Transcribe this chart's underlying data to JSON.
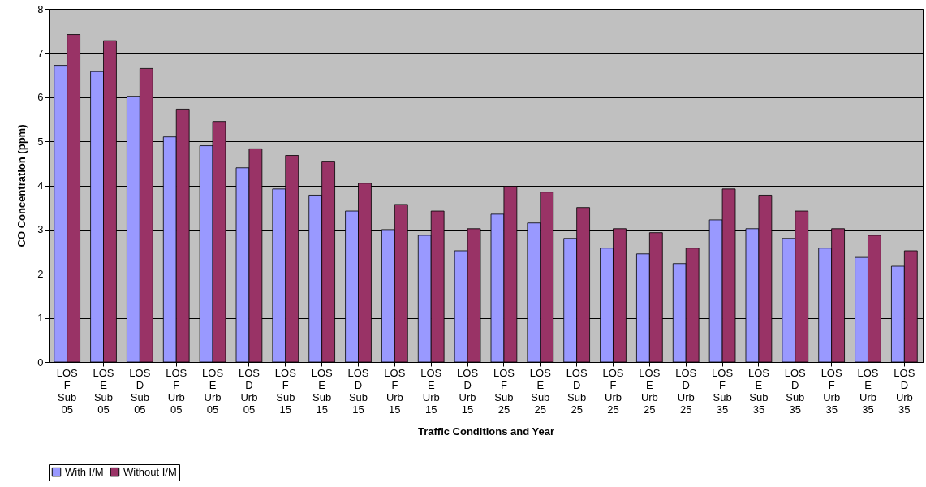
{
  "chart_data": {
    "type": "bar",
    "xlabel": "Traffic Conditions and Year",
    "ylabel": "CO Concentration (ppm)",
    "categories": [
      "LOS F Sub 05",
      "LOS E Sub 05",
      "LOS D Sub 05",
      "LOS F Urb 05",
      "LOS E Urb 05",
      "LOS D Urb 05",
      "LOS F Sub 15",
      "LOS E Sub 15",
      "LOS D Sub 15",
      "LOS F Urb 15",
      "LOS E Urb 15",
      "LOS D Urb 15",
      "LOS F Sub 25",
      "LOS E Sub 25",
      "LOS D Sub 25",
      "LOS F Urb 25",
      "LOS E Urb 25",
      "LOS D Urb 25",
      "LOS F Sub 35",
      "LOS E Sub 35",
      "LOS D Sub 35",
      "LOS F Urb 35",
      "LOS E Urb 35",
      "LOS D Urb 35"
    ],
    "series": [
      {
        "name": "With I/M",
        "color": "#9999ff",
        "values": [
          6.72,
          6.58,
          6.02,
          5.1,
          4.9,
          4.4,
          3.92,
          3.78,
          3.42,
          3.0,
          2.87,
          2.52,
          3.35,
          3.15,
          2.8,
          2.58,
          2.45,
          2.23,
          3.22,
          3.02,
          2.8,
          2.58,
          2.37,
          2.17
        ]
      },
      {
        "name": "Without I/M",
        "color": "#993366",
        "values": [
          7.42,
          7.28,
          6.65,
          5.73,
          5.45,
          4.83,
          4.68,
          4.55,
          4.05,
          3.57,
          3.42,
          3.02,
          3.98,
          3.85,
          3.5,
          3.02,
          2.93,
          2.58,
          3.92,
          3.78,
          3.42,
          3.02,
          2.87,
          2.52
        ]
      }
    ],
    "ylim": [
      0,
      8
    ],
    "yticks": [
      0,
      1,
      2,
      3,
      4,
      5,
      6,
      7,
      8
    ],
    "grid": "y",
    "legend": "bottom"
  }
}
